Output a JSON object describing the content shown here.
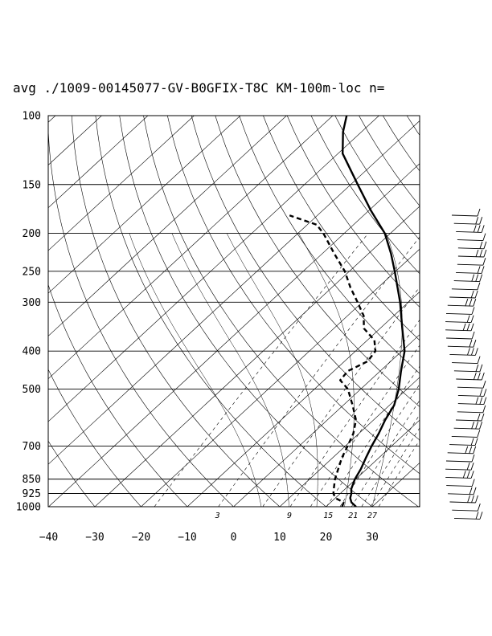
{
  "chart_data": {
    "type": "skew-t",
    "title": "avg ./1009-00145077-GV-B0GFIX-T8C KM-100m-loc n=",
    "xlabel": "",
    "ylabel": "",
    "pressure_levels": [
      100,
      150,
      200,
      250,
      300,
      400,
      500,
      700,
      850,
      925,
      1000
    ],
    "pressure_tick_labels": [
      "100",
      "150",
      "200",
      "250",
      "300",
      "400",
      "500",
      "700",
      "850",
      "925",
      "1000"
    ],
    "temperature_ticks": [
      -40,
      -30,
      -20,
      -10,
      0,
      10,
      20,
      30
    ],
    "temperature_tick_labels": [
      "−40",
      "−30",
      "−20",
      "−10",
      "0",
      "10",
      "20",
      "30"
    ],
    "mixing_ratio_labels": [
      {
        "text": "3",
        "value": 3
      },
      {
        "text": "9",
        "value": 9
      },
      {
        "text": "15",
        "value": 15
      },
      {
        "text": "21",
        "value": 21
      },
      {
        "text": "27",
        "value": 27
      }
    ],
    "ylim": [
      1000,
      100
    ],
    "grid": true,
    "series": [
      {
        "style": "solid",
        "role": "temperature",
        "points": [
          [
            1000,
            26.5
          ],
          [
            975,
            24.5
          ],
          [
            950,
            23.2
          ],
          [
            925,
            22.4
          ],
          [
            900,
            21.3
          ],
          [
            850,
            19.8
          ],
          [
            800,
            18.7
          ],
          [
            750,
            17.2
          ],
          [
            700,
            15.7
          ],
          [
            650,
            14.3
          ],
          [
            600,
            12.5
          ],
          [
            550,
            11.0
          ],
          [
            500,
            8.2
          ],
          [
            450,
            4.5
          ],
          [
            400,
            0.6
          ],
          [
            350,
            -5.2
          ],
          [
            300,
            -11.8
          ],
          [
            275,
            -15.8
          ],
          [
            250,
            -20.2
          ],
          [
            225,
            -25.2
          ],
          [
            200,
            -31.2
          ],
          [
            175,
            -39.5
          ],
          [
            150,
            -48.5
          ],
          [
            125,
            -59.0
          ],
          [
            110,
            -64.0
          ],
          [
            100,
            -67.0
          ]
        ]
      },
      {
        "style": "dashed",
        "role": "dewpoint",
        "points": [
          [
            1000,
            23.5
          ],
          [
            975,
            22.8
          ],
          [
            950,
            20.0
          ],
          [
            925,
            18.5
          ],
          [
            900,
            17.5
          ],
          [
            850,
            15.5
          ],
          [
            800,
            13.8
          ],
          [
            750,
            12.0
          ],
          [
            700,
            10.5
          ],
          [
            650,
            8.8
          ],
          [
            600,
            6.2
          ],
          [
            550,
            2.0
          ],
          [
            500,
            -2.8
          ],
          [
            475,
            -6.5
          ],
          [
            450,
            -7.0
          ],
          [
            425,
            -5.0
          ],
          [
            400,
            -5.7
          ],
          [
            375,
            -8.5
          ],
          [
            350,
            -13.5
          ],
          [
            325,
            -16.5
          ],
          [
            300,
            -21.0
          ],
          [
            275,
            -26.0
          ],
          [
            250,
            -31.0
          ],
          [
            225,
            -37.5
          ],
          [
            200,
            -44.5
          ],
          [
            190,
            -48.0
          ],
          [
            180,
            -56.0
          ]
        ]
      }
    ],
    "wind_profile": "wind barbs along right margin"
  }
}
